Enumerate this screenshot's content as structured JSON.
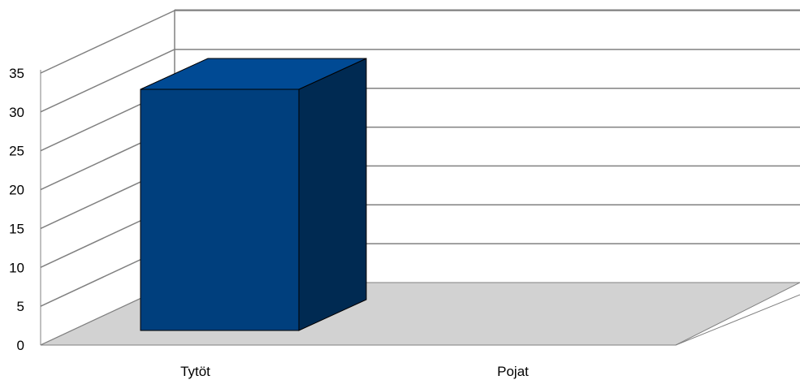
{
  "chart_data": {
    "type": "bar",
    "categories": [
      "Tytöt",
      "Pojat"
    ],
    "values": [
      33,
      0
    ],
    "ylim": [
      0,
      35
    ],
    "yticks": [
      0,
      5,
      10,
      15,
      20,
      25,
      30,
      35
    ],
    "grid": true,
    "three_d": true,
    "colors": {
      "bar_front": "#003f7d",
      "bar_top": "#004a94",
      "bar_side": "#002a52",
      "floor": "#d2d2d2",
      "grid": "#808080"
    }
  }
}
